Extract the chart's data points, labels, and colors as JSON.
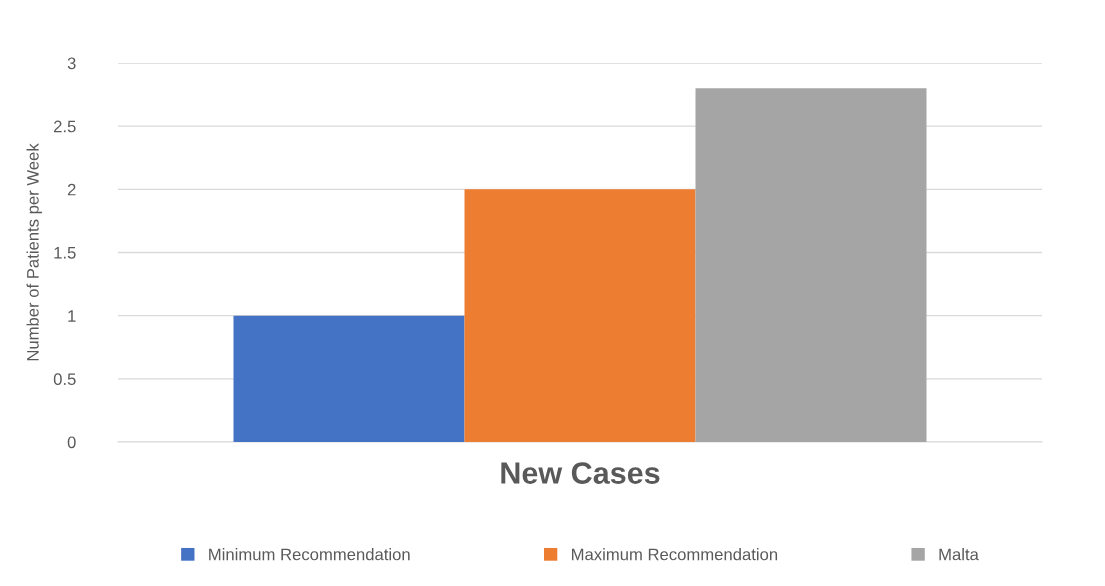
{
  "chart_data": {
    "type": "bar",
    "ylabel": "Number of Patients per Week",
    "categories": [
      "New Cases"
    ],
    "series": [
      {
        "name": "Minimum Recommendation",
        "color": "#4472c4",
        "values": [
          1
        ]
      },
      {
        "name": "Maximum Recommendation",
        "color": "#ed7d31",
        "values": [
          2
        ]
      },
      {
        "name": "Malta",
        "color": "#a5a5a5",
        "values": [
          2.8
        ]
      }
    ],
    "ylim": [
      0,
      3
    ],
    "yticks": [
      0,
      0.5,
      1,
      1.5,
      2,
      2.5,
      3
    ],
    "grid": "y",
    "legend": "bottom"
  }
}
